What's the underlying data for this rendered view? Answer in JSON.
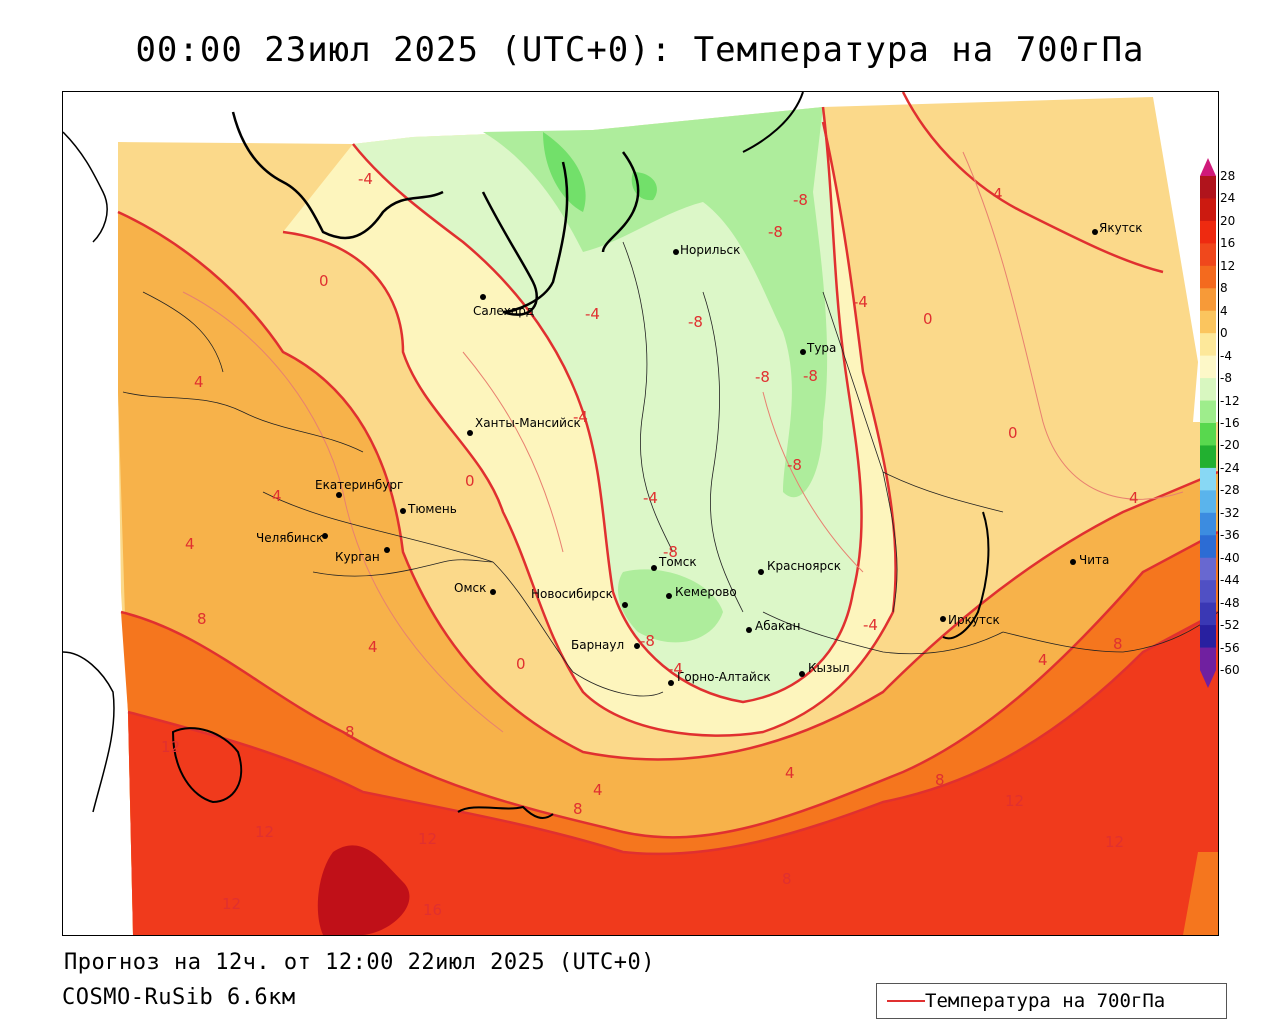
{
  "title": "00:00 23июл 2025 (UTC+0): Температура на 700гПа",
  "forecast_line": "Прогноз на 12ч. от 12:00 22июл 2025 (UTC+0)",
  "model_line": "COSMO-RuSib 6.6км",
  "legend_label": "Температура на 700гПа",
  "colors": {
    "isoline": "#e03030",
    "band_warm_16": "#c01018",
    "band_12": "#f03a1c",
    "band_8": "#f5761e",
    "band_4": "#f7b24a",
    "band_0": "#fbd98a",
    "band_m4": "#fdf5bd",
    "band_m8": "#dcf7c8",
    "band_m12": "#aeed9c",
    "band_m16": "#72e06a"
  },
  "colorbar": {
    "ticks": [
      "28",
      "24",
      "20",
      "16",
      "12",
      "8",
      "4",
      "0",
      "-4",
      "-8",
      "-12",
      "-16",
      "-20",
      "-24",
      "-28",
      "-32",
      "-36",
      "-40",
      "-44",
      "-48",
      "-52",
      "-56",
      "-60"
    ],
    "colors": [
      "#d01a7a",
      "#b0141c",
      "#cc1a10",
      "#ee2a10",
      "#f0481c",
      "#f46a1e",
      "#f79a38",
      "#fbc55e",
      "#fde89a",
      "#fdf8c8",
      "#d8f7c0",
      "#9eed8c",
      "#58d84e",
      "#22b030",
      "#88d8f4",
      "#5ab4ec",
      "#3c8ce0",
      "#2c6cd4",
      "#6868d0",
      "#5050c4",
      "#3a38b4",
      "#2820a0",
      "#7020a0"
    ]
  },
  "cities": [
    {
      "name": "Салехард"
    },
    {
      "name": "Норильск"
    },
    {
      "name": "Якутск"
    },
    {
      "name": "Тура"
    },
    {
      "name": "Ханты-Мансийск"
    },
    {
      "name": "Екатеринбург"
    },
    {
      "name": "Тюмень"
    },
    {
      "name": "Челябинск"
    },
    {
      "name": "Курган"
    },
    {
      "name": "Омск"
    },
    {
      "name": "Томск"
    },
    {
      "name": "Красноярск"
    },
    {
      "name": "Новосибирск"
    },
    {
      "name": "Кемерово"
    },
    {
      "name": "Абакан"
    },
    {
      "name": "Барнаул"
    },
    {
      "name": "Горно-Алтайск"
    },
    {
      "name": "Кызыл"
    },
    {
      "name": "Иркутск"
    },
    {
      "name": "Чита"
    }
  ],
  "iso_labels": [
    "-4",
    "-8",
    "-8",
    "-8",
    "-4",
    "-8",
    "-8",
    "-4",
    "-8",
    "-4",
    "-8",
    "-8",
    "-4",
    "-4",
    "-4",
    "0",
    "0",
    "0",
    "0",
    "0",
    "4",
    "4",
    "4",
    "4",
    "4",
    "4",
    "4",
    "4",
    "4",
    "8",
    "8",
    "8",
    "8",
    "8",
    "8",
    "12",
    "12",
    "12",
    "12",
    "12",
    "12",
    "16"
  ]
}
